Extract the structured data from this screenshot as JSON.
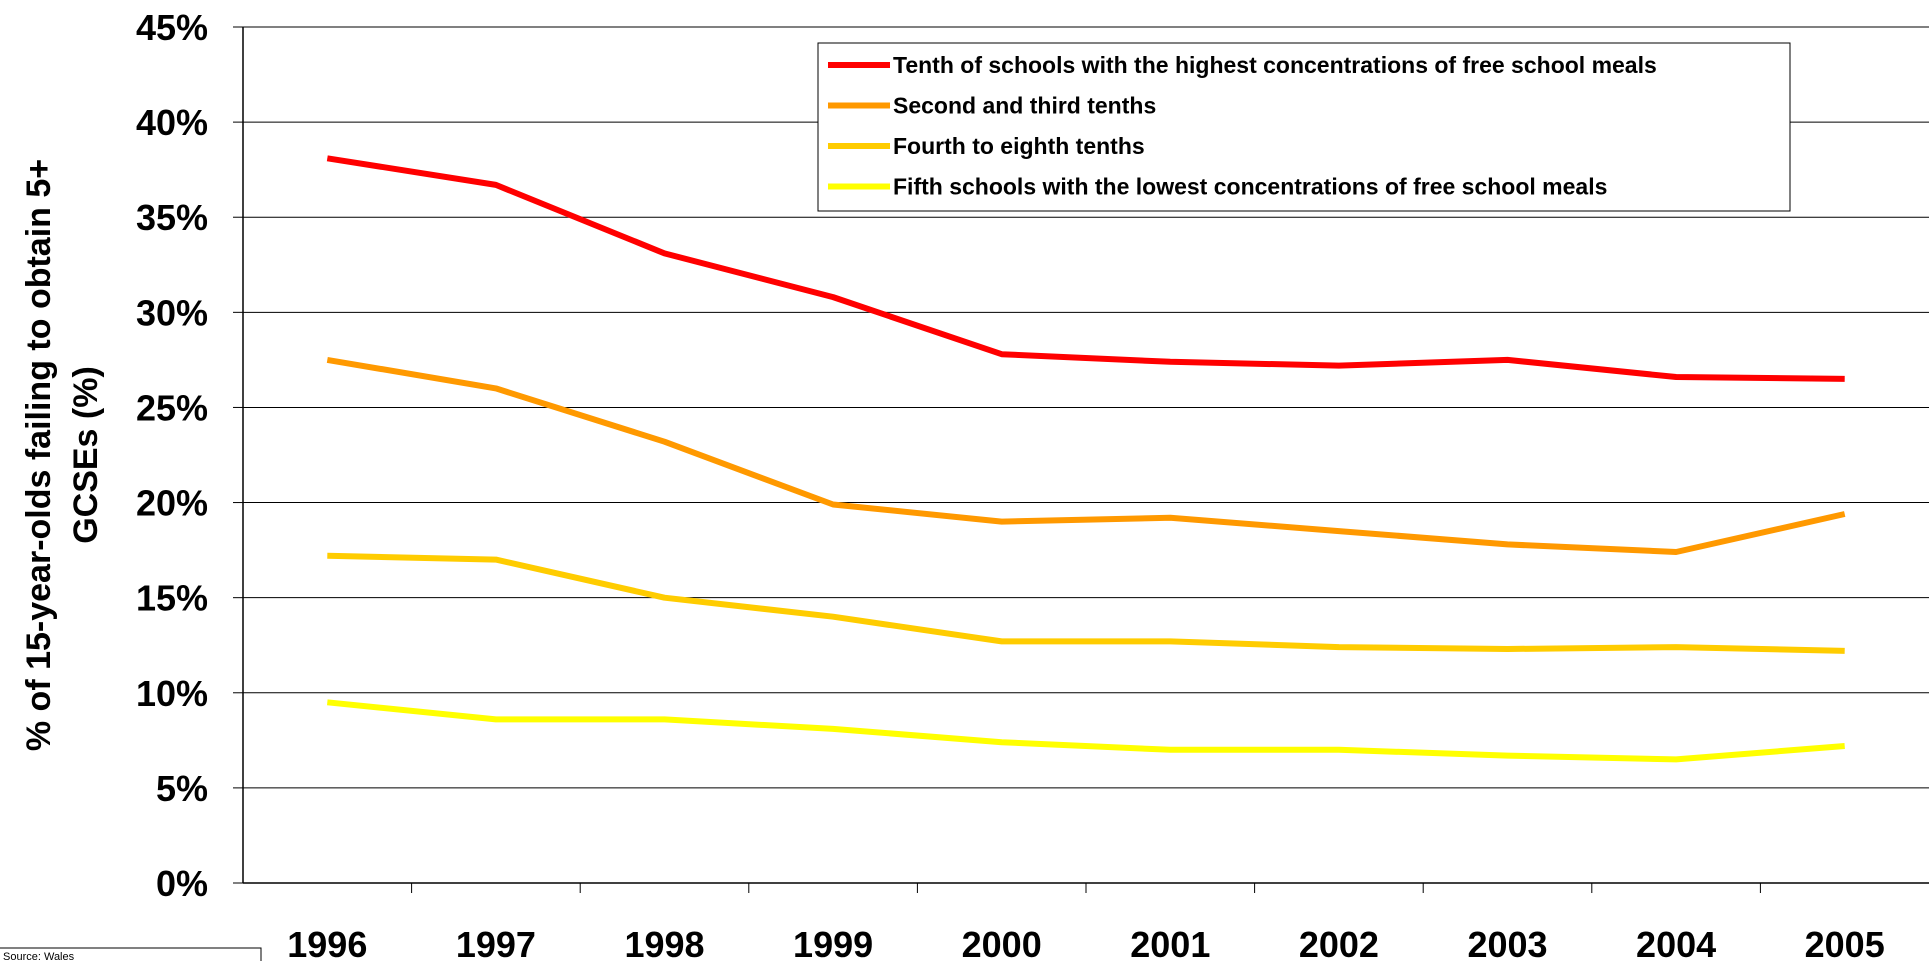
{
  "chart_data": {
    "type": "line",
    "title": "",
    "xlabel": "",
    "ylabel": "% of 15-year-olds failing to obtain 5+ GCSEs (%)",
    "ylabel_lines": [
      "% of 15-year-olds failing to obtain 5+",
      "GCSEs (%)"
    ],
    "x": [
      "1996",
      "1997",
      "1998",
      "1999",
      "2000",
      "2001",
      "2002",
      "2003",
      "2004",
      "2005"
    ],
    "y_ticks": [
      "0%",
      "5%",
      "10%",
      "15%",
      "20%",
      "25%",
      "30%",
      "35%",
      "40%",
      "45%"
    ],
    "ylim": [
      0,
      45
    ],
    "grid": true,
    "legend_position": "top-right",
    "series": [
      {
        "name": "Tenth of schools with the highest concentrations of free school meals",
        "color": "#ff0000",
        "values": [
          38.1,
          36.7,
          33.1,
          30.8,
          27.8,
          27.4,
          27.2,
          27.5,
          26.6,
          26.5
        ]
      },
      {
        "name": "Second and third tenths",
        "color": "#ff9900",
        "values": [
          27.5,
          26.0,
          23.2,
          19.9,
          19.0,
          19.2,
          18.5,
          17.8,
          17.4,
          19.4
        ]
      },
      {
        "name": "Fourth to eighth tenths",
        "color": "#ffcc00",
        "values": [
          17.2,
          17.0,
          15.0,
          14.0,
          12.7,
          12.7,
          12.4,
          12.3,
          12.4,
          12.2
        ]
      },
      {
        "name": "Fifth schools with the lowest concentrations of free school meals",
        "color": "#ffff00",
        "values": [
          9.5,
          8.6,
          8.6,
          8.1,
          7.4,
          7.0,
          7.0,
          6.7,
          6.5,
          7.2
        ]
      }
    ]
  },
  "source_note": "Source: Wales"
}
